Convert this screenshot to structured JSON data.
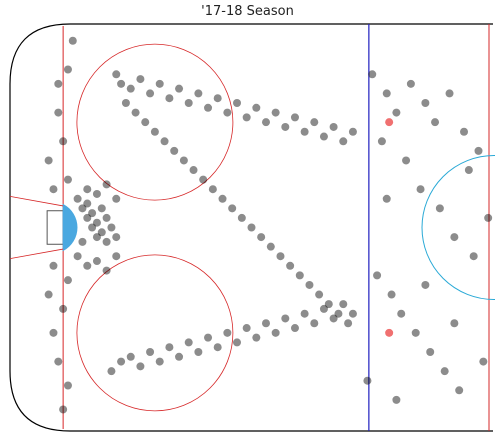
{
  "chart_data": {
    "type": "scatter",
    "title": "'17-18 Season",
    "xlabel": "",
    "ylabel": "",
    "xlim": [
      0,
      100
    ],
    "ylim": [
      -42.5,
      42.5
    ],
    "grid": false,
    "legend": "none",
    "marker_color": "#000000",
    "marker_alpha": 0.45,
    "rink_colors": {
      "boards": "#000000",
      "goal_line": "#d62728",
      "blue_line": "#1f1fbf",
      "faceoff": "#d62728",
      "crease": "#4aa8e0",
      "center_circle": "#29a9d6"
    },
    "series": [
      {
        "points": [
          [
            22,
            32
          ],
          [
            23,
            30
          ],
          [
            25,
            29
          ],
          [
            27,
            31
          ],
          [
            29,
            28
          ],
          [
            31,
            30
          ],
          [
            33,
            27
          ],
          [
            35,
            29
          ],
          [
            37,
            26
          ],
          [
            39,
            28
          ],
          [
            41,
            25
          ],
          [
            43,
            27
          ],
          [
            45,
            24
          ],
          [
            47,
            26
          ],
          [
            49,
            23
          ],
          [
            51,
            25
          ],
          [
            53,
            22
          ],
          [
            55,
            24
          ],
          [
            57,
            21
          ],
          [
            59,
            23
          ],
          [
            61,
            20
          ],
          [
            63,
            22
          ],
          [
            65,
            19
          ],
          [
            67,
            21
          ],
          [
            69,
            18
          ],
          [
            71,
            20
          ],
          [
            24,
            26
          ],
          [
            26,
            24
          ],
          [
            28,
            22
          ],
          [
            30,
            20
          ],
          [
            32,
            18
          ],
          [
            34,
            16
          ],
          [
            36,
            14
          ],
          [
            38,
            12
          ],
          [
            40,
            10
          ],
          [
            42,
            8
          ],
          [
            44,
            6
          ],
          [
            46,
            4
          ],
          [
            48,
            2
          ],
          [
            50,
            0
          ],
          [
            52,
            -2
          ],
          [
            54,
            -4
          ],
          [
            56,
            -6
          ],
          [
            58,
            -8
          ],
          [
            60,
            -10
          ],
          [
            62,
            -12
          ],
          [
            64,
            -14
          ],
          [
            66,
            -16
          ],
          [
            68,
            -18
          ],
          [
            70,
            -20
          ],
          [
            21,
            -30
          ],
          [
            23,
            -28
          ],
          [
            25,
            -27
          ],
          [
            27,
            -29
          ],
          [
            29,
            -26
          ],
          [
            31,
            -28
          ],
          [
            33,
            -25
          ],
          [
            35,
            -27
          ],
          [
            37,
            -24
          ],
          [
            39,
            -26
          ],
          [
            41,
            -23
          ],
          [
            43,
            -25
          ],
          [
            45,
            -22
          ],
          [
            47,
            -24
          ],
          [
            49,
            -21
          ],
          [
            51,
            -23
          ],
          [
            53,
            -20
          ],
          [
            55,
            -22
          ],
          [
            57,
            -19
          ],
          [
            59,
            -21
          ],
          [
            61,
            -18
          ],
          [
            63,
            -20
          ],
          [
            65,
            -17
          ],
          [
            67,
            -19
          ],
          [
            69,
            -16
          ],
          [
            71,
            -18
          ],
          [
            15,
            4
          ],
          [
            16,
            2
          ],
          [
            17,
            0
          ],
          [
            18,
            -2
          ],
          [
            15,
            -3
          ],
          [
            16,
            5
          ],
          [
            17,
            3
          ],
          [
            18,
            1
          ],
          [
            19,
            -1
          ],
          [
            20,
            -3
          ],
          [
            19,
            4
          ],
          [
            20,
            2
          ],
          [
            21,
            0
          ],
          [
            22,
            -2
          ],
          [
            14,
            6
          ],
          [
            14,
            -6
          ],
          [
            16,
            8
          ],
          [
            16,
            -8
          ],
          [
            18,
            7
          ],
          [
            18,
            -7
          ],
          [
            20,
            9
          ],
          [
            20,
            -9
          ],
          [
            22,
            6
          ],
          [
            22,
            -6
          ]
        ]
      },
      {
        "points": [
          [
            75,
            32
          ],
          [
            78,
            28
          ],
          [
            80,
            24
          ],
          [
            83,
            30
          ],
          [
            86,
            26
          ],
          [
            88,
            22
          ],
          [
            91,
            28
          ],
          [
            94,
            20
          ],
          [
            97,
            16
          ],
          [
            77,
            18
          ],
          [
            82,
            14
          ],
          [
            85,
            8
          ],
          [
            89,
            4
          ],
          [
            92,
            -2
          ],
          [
            96,
            -6
          ],
          [
            76,
            -10
          ],
          [
            79,
            -14
          ],
          [
            81,
            -18
          ],
          [
            84,
            -22
          ],
          [
            87,
            -26
          ],
          [
            90,
            -30
          ],
          [
            93,
            -34
          ],
          [
            98,
            -28
          ],
          [
            74,
            -32
          ],
          [
            80,
            -36
          ],
          [
            95,
            12
          ],
          [
            99,
            2
          ],
          [
            78,
            6
          ],
          [
            86,
            -12
          ],
          [
            92,
            -20
          ]
        ]
      },
      {
        "points": [
          [
            13,
            39
          ],
          [
            12,
            33
          ],
          [
            11,
            -38
          ],
          [
            12,
            -33
          ],
          [
            10,
            24
          ],
          [
            9,
            -22
          ],
          [
            8,
            14
          ],
          [
            8,
            -14
          ],
          [
            10,
            30
          ],
          [
            10,
            -28
          ],
          [
            9,
            8
          ],
          [
            9,
            -8
          ],
          [
            11,
            18
          ],
          [
            11,
            -17
          ],
          [
            12,
            10
          ],
          [
            12,
            -11
          ]
        ]
      }
    ],
    "highlights": [
      {
        "x": 78.5,
        "y": 22,
        "color": "#f07070"
      },
      {
        "x": 78.5,
        "y": -22,
        "color": "#f07070"
      }
    ]
  }
}
